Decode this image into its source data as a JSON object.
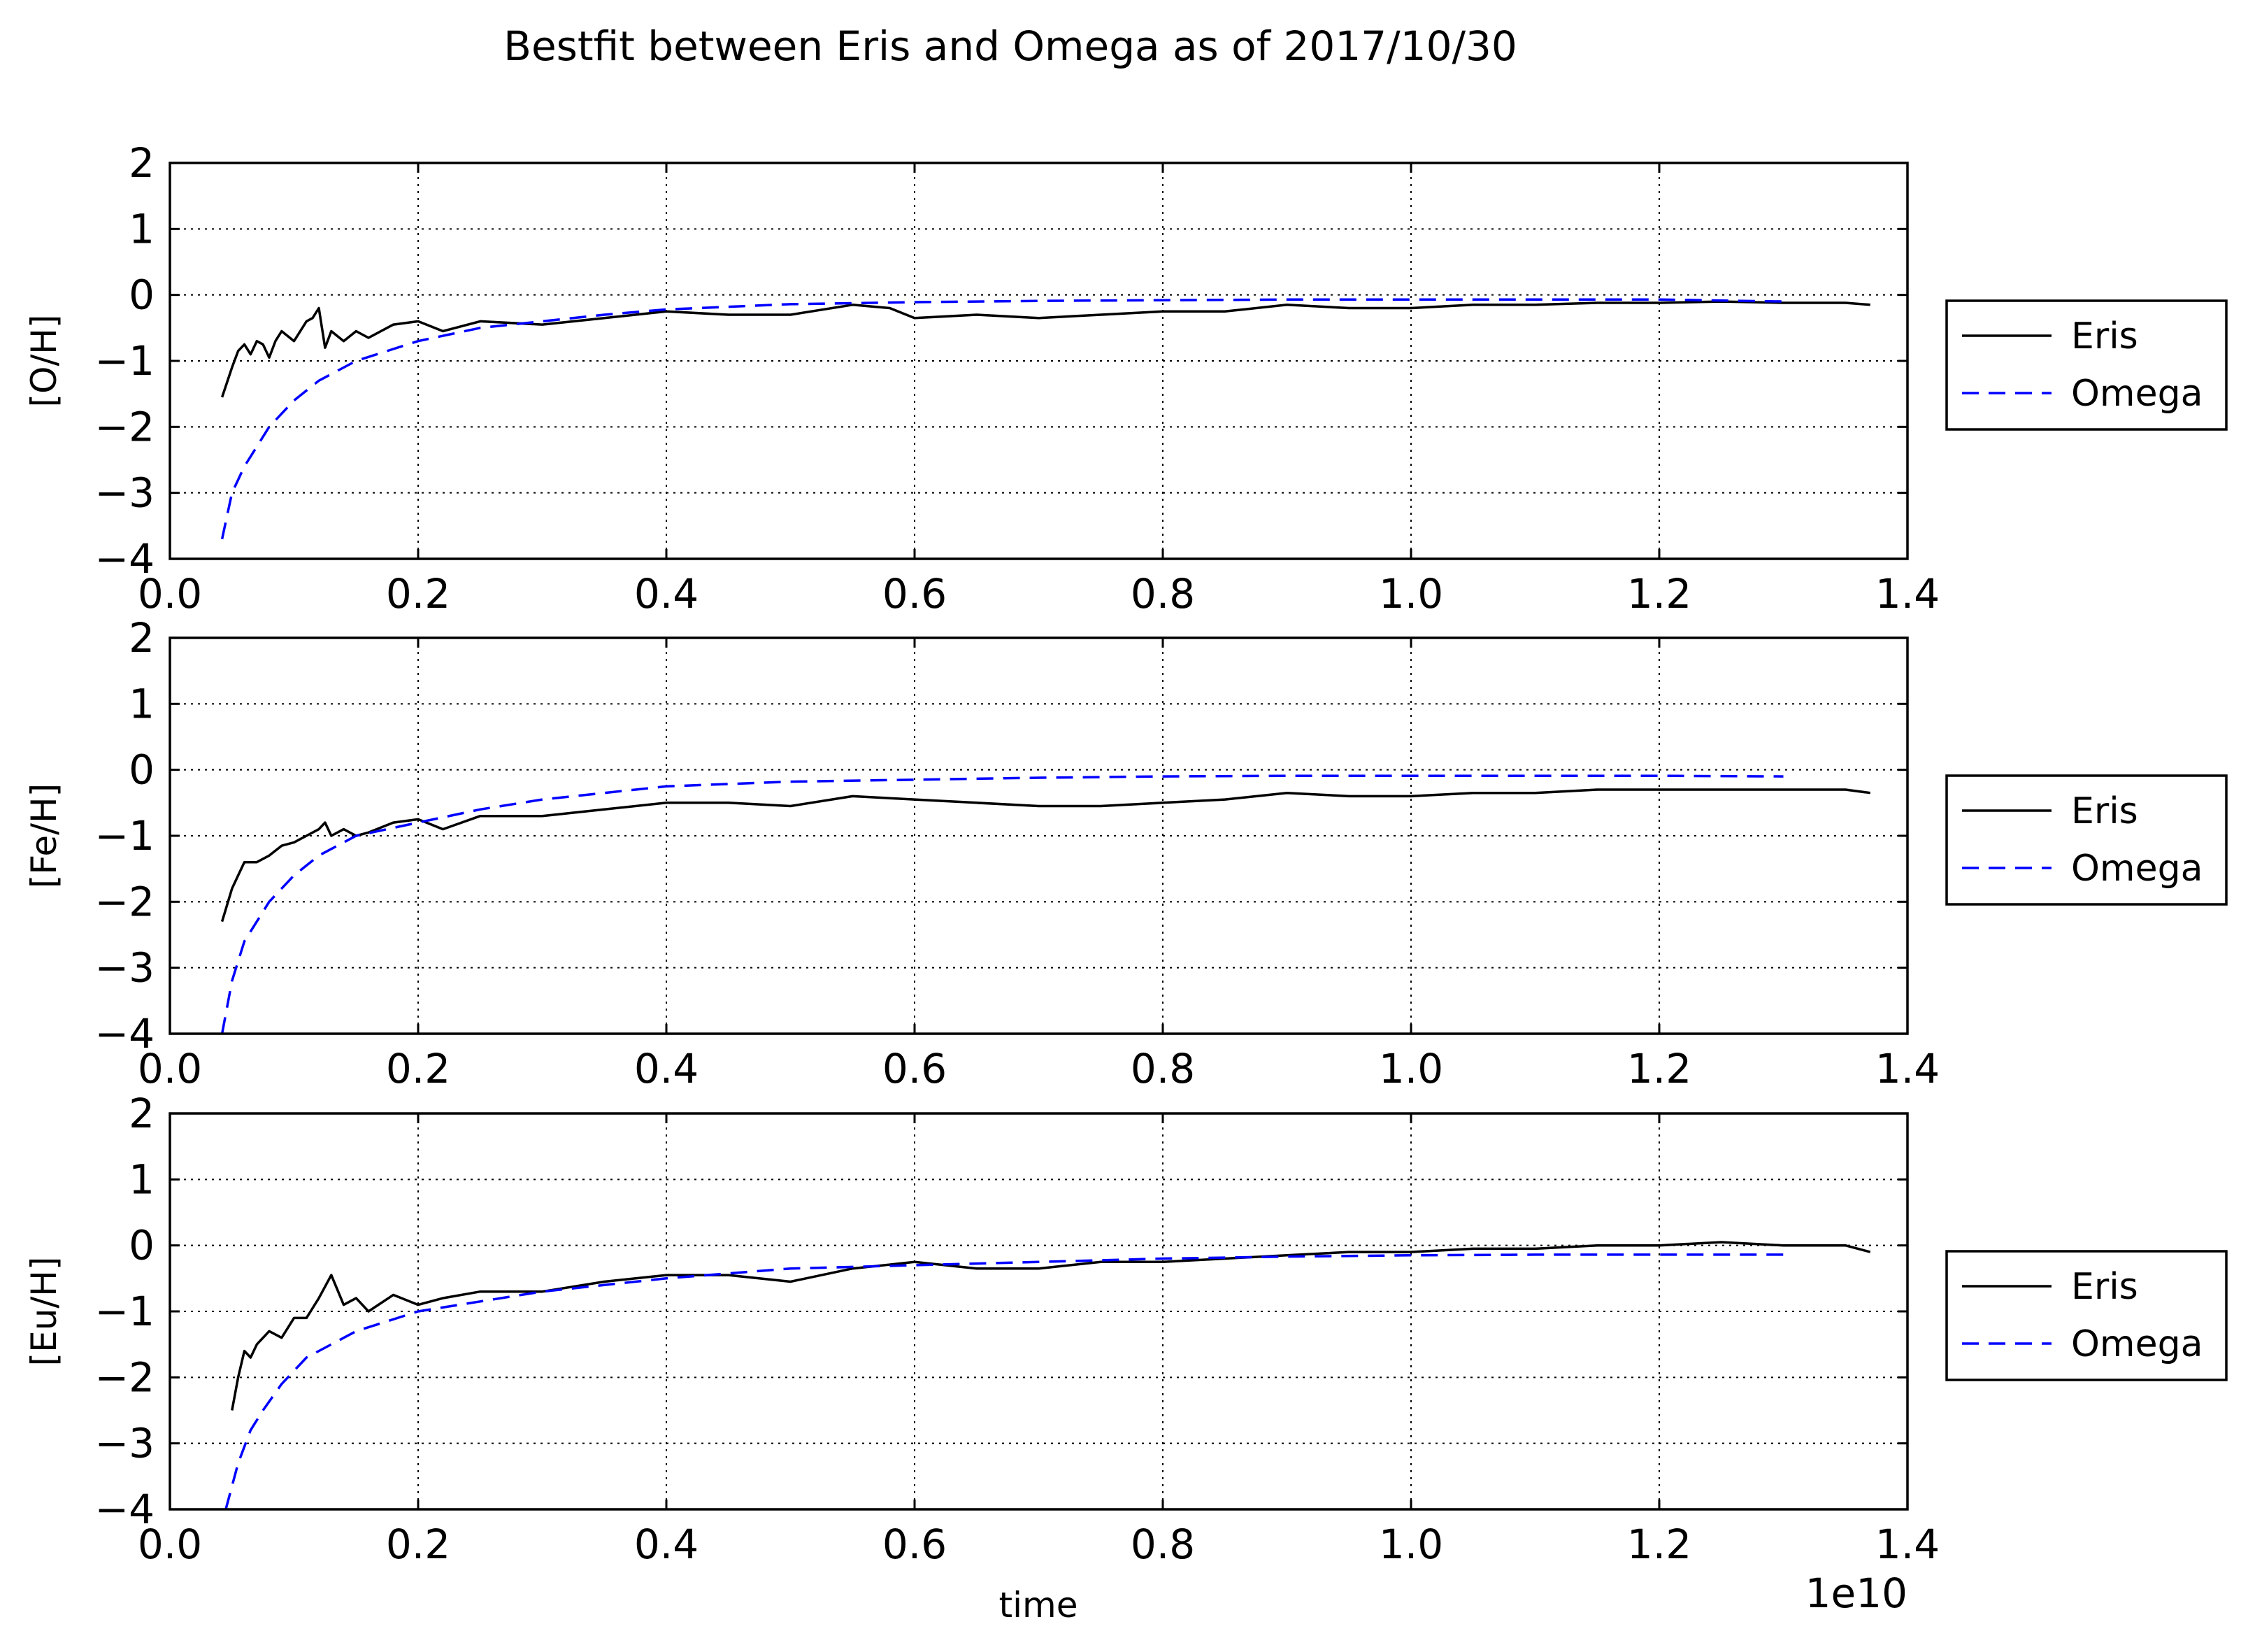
{
  "figure": {
    "title": "Bestfit between Eris and Omega as of 2017/10/30",
    "xlabel": "time",
    "x_offset_label": "1e10"
  },
  "chart_data": [
    {
      "type": "line",
      "ylabel": "[O/H]",
      "xlim": [
        0.0,
        1.4
      ],
      "ylim": [
        -4,
        2
      ],
      "x_ticks": [
        "0.0",
        "0.2",
        "0.4",
        "0.6",
        "0.8",
        "1.0",
        "1.2",
        "1.4"
      ],
      "y_ticks": [
        "2",
        "1",
        "0",
        "−1",
        "−2",
        "−3",
        "−4"
      ],
      "grid": true,
      "legend_position": "right, outside",
      "series": [
        {
          "name": "Eris",
          "color": "#000000",
          "style": "solid",
          "x": [
            0.042,
            0.05,
            0.055,
            0.06,
            0.065,
            0.07,
            0.075,
            0.08,
            0.085,
            0.09,
            0.1,
            0.11,
            0.115,
            0.12,
            0.125,
            0.13,
            0.14,
            0.15,
            0.16,
            0.18,
            0.2,
            0.22,
            0.25,
            0.3,
            0.35,
            0.4,
            0.45,
            0.5,
            0.55,
            0.58,
            0.6,
            0.65,
            0.7,
            0.75,
            0.8,
            0.85,
            0.9,
            0.95,
            1.0,
            1.05,
            1.1,
            1.15,
            1.2,
            1.25,
            1.3,
            1.35,
            1.37
          ],
          "y": [
            -1.55,
            -1.1,
            -0.85,
            -0.75,
            -0.9,
            -0.7,
            -0.75,
            -0.95,
            -0.7,
            -0.55,
            -0.7,
            -0.4,
            -0.35,
            -0.2,
            -0.8,
            -0.55,
            -0.7,
            -0.55,
            -0.65,
            -0.45,
            -0.4,
            -0.55,
            -0.4,
            -0.45,
            -0.35,
            -0.25,
            -0.3,
            -0.3,
            -0.15,
            -0.2,
            -0.35,
            -0.3,
            -0.35,
            -0.3,
            -0.25,
            -0.25,
            -0.15,
            -0.2,
            -0.2,
            -0.15,
            -0.15,
            -0.12,
            -0.12,
            -0.1,
            -0.12,
            -0.12,
            -0.15
          ]
        },
        {
          "name": "Omega",
          "color": "#0000ff",
          "style": "dashed",
          "x": [
            0.042,
            0.05,
            0.06,
            0.07,
            0.08,
            0.1,
            0.12,
            0.15,
            0.2,
            0.25,
            0.3,
            0.35,
            0.4,
            0.5,
            0.6,
            0.7,
            0.8,
            0.9,
            1.0,
            1.1,
            1.2,
            1.3
          ],
          "y": [
            -3.7,
            -3.0,
            -2.6,
            -2.3,
            -2.0,
            -1.6,
            -1.3,
            -1.0,
            -0.7,
            -0.5,
            -0.4,
            -0.3,
            -0.22,
            -0.14,
            -0.11,
            -0.09,
            -0.08,
            -0.07,
            -0.07,
            -0.07,
            -0.07,
            -0.1
          ]
        }
      ]
    },
    {
      "type": "line",
      "ylabel": "[Fe/H]",
      "xlim": [
        0.0,
        1.4
      ],
      "ylim": [
        -4,
        2
      ],
      "x_ticks": [
        "0.0",
        "0.2",
        "0.4",
        "0.6",
        "0.8",
        "1.0",
        "1.2",
        "1.4"
      ],
      "y_ticks": [
        "2",
        "1",
        "0",
        "−1",
        "−2",
        "−3",
        "−4"
      ],
      "grid": true,
      "legend_position": "right, outside",
      "series": [
        {
          "name": "Eris",
          "color": "#000000",
          "style": "solid",
          "x": [
            0.042,
            0.05,
            0.055,
            0.06,
            0.07,
            0.08,
            0.09,
            0.1,
            0.11,
            0.12,
            0.125,
            0.13,
            0.14,
            0.15,
            0.16,
            0.18,
            0.2,
            0.22,
            0.25,
            0.3,
            0.35,
            0.4,
            0.45,
            0.5,
            0.55,
            0.6,
            0.65,
            0.7,
            0.75,
            0.8,
            0.85,
            0.9,
            0.95,
            1.0,
            1.05,
            1.1,
            1.15,
            1.2,
            1.25,
            1.3,
            1.35,
            1.37
          ],
          "y": [
            -2.3,
            -1.8,
            -1.6,
            -1.4,
            -1.4,
            -1.3,
            -1.15,
            -1.1,
            -1.0,
            -0.9,
            -0.8,
            -1.0,
            -0.9,
            -1.0,
            -0.95,
            -0.8,
            -0.75,
            -0.9,
            -0.7,
            -0.7,
            -0.6,
            -0.5,
            -0.5,
            -0.55,
            -0.4,
            -0.45,
            -0.5,
            -0.55,
            -0.55,
            -0.5,
            -0.45,
            -0.35,
            -0.4,
            -0.4,
            -0.35,
            -0.35,
            -0.3,
            -0.3,
            -0.3,
            -0.3,
            -0.3,
            -0.35
          ]
        },
        {
          "name": "Omega",
          "color": "#0000ff",
          "style": "dashed",
          "x": [
            0.042,
            0.05,
            0.06,
            0.07,
            0.08,
            0.1,
            0.12,
            0.15,
            0.2,
            0.25,
            0.3,
            0.35,
            0.4,
            0.5,
            0.6,
            0.7,
            0.8,
            0.9,
            1.0,
            1.1,
            1.2,
            1.3
          ],
          "y": [
            -4.0,
            -3.2,
            -2.6,
            -2.3,
            -2.0,
            -1.6,
            -1.3,
            -1.0,
            -0.8,
            -0.6,
            -0.45,
            -0.35,
            -0.25,
            -0.18,
            -0.15,
            -0.12,
            -0.1,
            -0.09,
            -0.09,
            -0.09,
            -0.09,
            -0.1
          ]
        }
      ]
    },
    {
      "type": "line",
      "ylabel": "[Eu/H]",
      "xlim": [
        0.0,
        1.4
      ],
      "ylim": [
        -4,
        2
      ],
      "x_ticks": [
        "0.0",
        "0.2",
        "0.4",
        "0.6",
        "0.8",
        "1.0",
        "1.2",
        "1.4"
      ],
      "y_ticks": [
        "2",
        "1",
        "0",
        "−1",
        "−2",
        "−3",
        "−4"
      ],
      "grid": true,
      "legend_position": "right, outside",
      "series": [
        {
          "name": "Eris",
          "color": "#000000",
          "style": "solid",
          "x": [
            0.05,
            0.055,
            0.06,
            0.065,
            0.07,
            0.08,
            0.09,
            0.1,
            0.11,
            0.12,
            0.13,
            0.14,
            0.15,
            0.16,
            0.18,
            0.2,
            0.22,
            0.25,
            0.3,
            0.35,
            0.4,
            0.45,
            0.5,
            0.55,
            0.6,
            0.65,
            0.7,
            0.75,
            0.8,
            0.85,
            0.9,
            0.95,
            1.0,
            1.05,
            1.1,
            1.15,
            1.2,
            1.25,
            1.3,
            1.35,
            1.37
          ],
          "y": [
            -2.5,
            -2.0,
            -1.6,
            -1.7,
            -1.5,
            -1.3,
            -1.4,
            -1.1,
            -1.1,
            -0.8,
            -0.45,
            -0.9,
            -0.8,
            -1.0,
            -0.75,
            -0.9,
            -0.8,
            -0.7,
            -0.7,
            -0.55,
            -0.45,
            -0.45,
            -0.55,
            -0.35,
            -0.25,
            -0.35,
            -0.35,
            -0.25,
            -0.25,
            -0.2,
            -0.15,
            -0.1,
            -0.1,
            -0.05,
            -0.05,
            0.0,
            0.0,
            0.05,
            0.0,
            0.0,
            -0.1
          ]
        },
        {
          "name": "Omega",
          "color": "#0000ff",
          "style": "dashed",
          "x": [
            0.045,
            0.055,
            0.065,
            0.075,
            0.09,
            0.11,
            0.13,
            0.15,
            0.2,
            0.25,
            0.3,
            0.35,
            0.4,
            0.5,
            0.6,
            0.7,
            0.8,
            0.9,
            1.0,
            1.1,
            1.2,
            1.3
          ],
          "y": [
            -4.0,
            -3.3,
            -2.8,
            -2.5,
            -2.1,
            -1.7,
            -1.5,
            -1.3,
            -1.0,
            -0.85,
            -0.7,
            -0.6,
            -0.5,
            -0.35,
            -0.3,
            -0.25,
            -0.2,
            -0.17,
            -0.15,
            -0.14,
            -0.14,
            -0.14
          ]
        }
      ]
    }
  ]
}
